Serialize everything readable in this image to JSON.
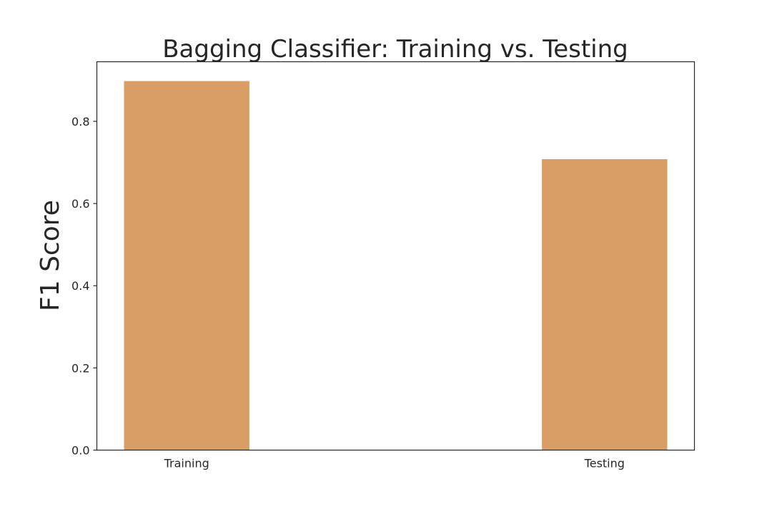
{
  "chart_data": {
    "type": "bar",
    "title": "Bagging Classifier: Training vs. Testing",
    "xlabel": "",
    "ylabel": "F1 Score",
    "categories": [
      "Training",
      "Testing"
    ],
    "values": [
      0.898,
      0.708
    ],
    "ylim": [
      0,
      0.945
    ],
    "yticks": [
      "0.0",
      "0.2",
      "0.4",
      "0.6",
      "0.8"
    ],
    "grid": false,
    "bar_color": "#d89e66"
  }
}
